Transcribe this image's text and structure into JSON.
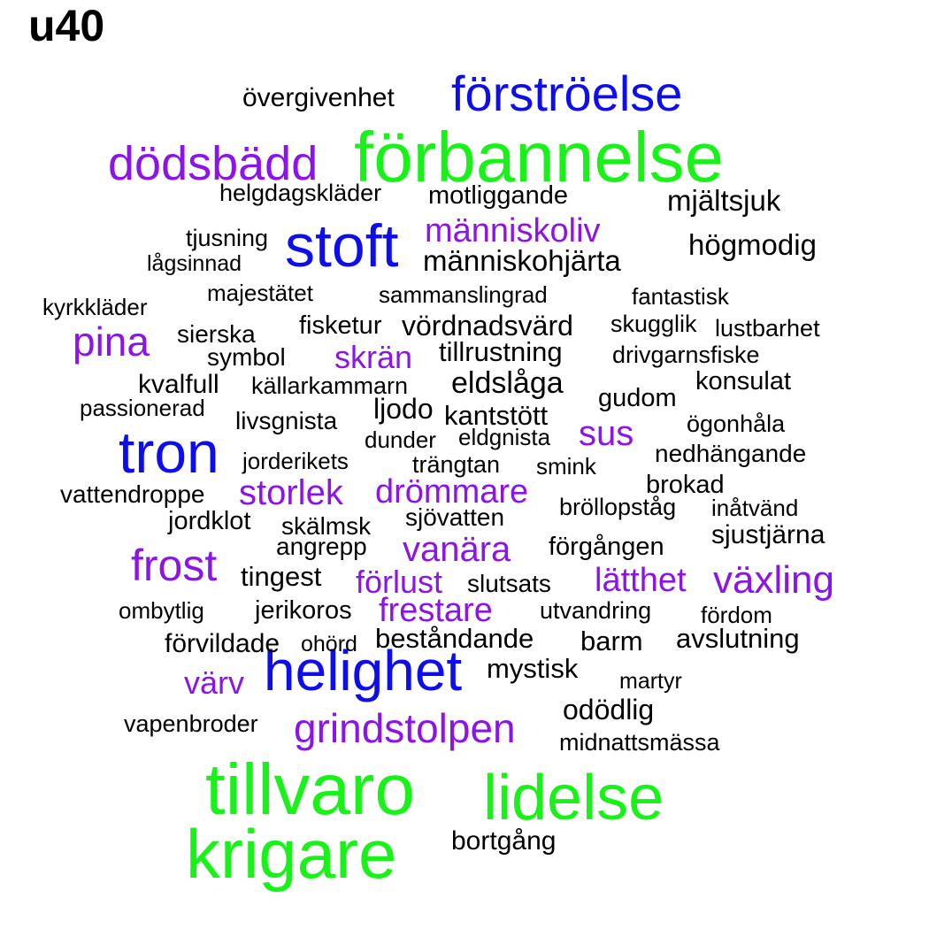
{
  "title": "u40",
  "words": [
    {
      "text": "förbannelse",
      "color": "green"
    },
    {
      "text": "tillvaro",
      "color": "green"
    },
    {
      "text": "lidelse",
      "color": "green"
    },
    {
      "text": "krigare",
      "color": "green"
    },
    {
      "text": "förströelse",
      "color": "blue"
    },
    {
      "text": "stoft",
      "color": "blue"
    },
    {
      "text": "tron",
      "color": "blue"
    },
    {
      "text": "helighet",
      "color": "blue"
    },
    {
      "text": "dödsbädd",
      "color": "purple"
    },
    {
      "text": "människoliv",
      "color": "purple"
    },
    {
      "text": "pina",
      "color": "purple"
    },
    {
      "text": "skrän",
      "color": "purple"
    },
    {
      "text": "sus",
      "color": "purple"
    },
    {
      "text": "storlek",
      "color": "purple"
    },
    {
      "text": "drömmare",
      "color": "purple"
    },
    {
      "text": "vanära",
      "color": "purple"
    },
    {
      "text": "frost",
      "color": "purple"
    },
    {
      "text": "förlust",
      "color": "purple"
    },
    {
      "text": "lätthet",
      "color": "purple"
    },
    {
      "text": "växling",
      "color": "purple"
    },
    {
      "text": "frestare",
      "color": "purple"
    },
    {
      "text": "värv",
      "color": "purple"
    },
    {
      "text": "grindstolpen",
      "color": "purple"
    },
    {
      "text": "övergivenhet",
      "color": "black"
    },
    {
      "text": "helgdagskläder",
      "color": "black"
    },
    {
      "text": "motliggande",
      "color": "black"
    },
    {
      "text": "mjältsjuk",
      "color": "black"
    },
    {
      "text": "tjusning",
      "color": "black"
    },
    {
      "text": "högmodig",
      "color": "black"
    },
    {
      "text": "lågsinnad",
      "color": "black"
    },
    {
      "text": "människohjärta",
      "color": "black"
    },
    {
      "text": "majestätet",
      "color": "black"
    },
    {
      "text": "sammanslingrad",
      "color": "black"
    },
    {
      "text": "fantastisk",
      "color": "black"
    },
    {
      "text": "kyrkkläder",
      "color": "black"
    },
    {
      "text": "fisketur",
      "color": "black"
    },
    {
      "text": "vördnadsvärd",
      "color": "black"
    },
    {
      "text": "skugglik",
      "color": "black"
    },
    {
      "text": "lustbarhet",
      "color": "black"
    },
    {
      "text": "sierska",
      "color": "black"
    },
    {
      "text": "tillrustning",
      "color": "black"
    },
    {
      "text": "symbol",
      "color": "black"
    },
    {
      "text": "drivgarnsfiske",
      "color": "black"
    },
    {
      "text": "eldslåga",
      "color": "black"
    },
    {
      "text": "konsulat",
      "color": "black"
    },
    {
      "text": "kvalfull",
      "color": "black"
    },
    {
      "text": "källarkammarn",
      "color": "black"
    },
    {
      "text": "gudom",
      "color": "black"
    },
    {
      "text": "passionerad",
      "color": "black"
    },
    {
      "text": "ljodo",
      "color": "black"
    },
    {
      "text": "kantstött",
      "color": "black"
    },
    {
      "text": "livsgnista",
      "color": "black"
    },
    {
      "text": "ögonhåla",
      "color": "black"
    },
    {
      "text": "dunder",
      "color": "black"
    },
    {
      "text": "eldgnista",
      "color": "black"
    },
    {
      "text": "nedhängande",
      "color": "black"
    },
    {
      "text": "jorderikets",
      "color": "black"
    },
    {
      "text": "trängtan",
      "color": "black"
    },
    {
      "text": "smink",
      "color": "black"
    },
    {
      "text": "brokad",
      "color": "black"
    },
    {
      "text": "vattendroppe",
      "color": "black"
    },
    {
      "text": "bröllopståg",
      "color": "black"
    },
    {
      "text": "inåtvänd",
      "color": "black"
    },
    {
      "text": "jordklot",
      "color": "black"
    },
    {
      "text": "sjövatten",
      "color": "black"
    },
    {
      "text": "skälmsk",
      "color": "black"
    },
    {
      "text": "sjustjärna",
      "color": "black"
    },
    {
      "text": "angrepp",
      "color": "black"
    },
    {
      "text": "förgången",
      "color": "black"
    },
    {
      "text": "tingest",
      "color": "black"
    },
    {
      "text": "slutsats",
      "color": "black"
    },
    {
      "text": "ombytlig",
      "color": "black"
    },
    {
      "text": "jerikoros",
      "color": "black"
    },
    {
      "text": "utvandring",
      "color": "black"
    },
    {
      "text": "fördom",
      "color": "black"
    },
    {
      "text": "förvildade",
      "color": "black"
    },
    {
      "text": "ohörd",
      "color": "black"
    },
    {
      "text": "beståndande",
      "color": "black"
    },
    {
      "text": "barm",
      "color": "black"
    },
    {
      "text": "avslutning",
      "color": "black"
    },
    {
      "text": "mystisk",
      "color": "black"
    },
    {
      "text": "martyr",
      "color": "black"
    },
    {
      "text": "odödlig",
      "color": "black"
    },
    {
      "text": "vapenbroder",
      "color": "black"
    },
    {
      "text": "midnattsmässa",
      "color": "black"
    },
    {
      "text": "bortgång",
      "color": "black"
    }
  ]
}
